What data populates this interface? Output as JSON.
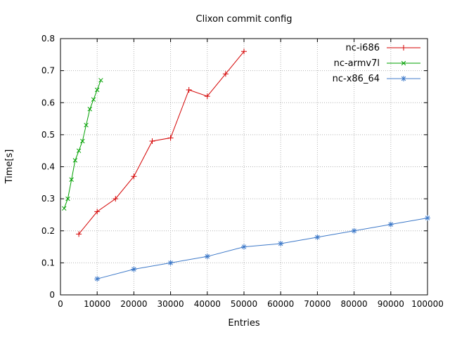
{
  "chart_data": {
    "type": "line",
    "title": "Clixon commit config",
    "xlabel": "Entries",
    "ylabel": "Time[s]",
    "xlim": [
      0,
      100000
    ],
    "ylim": [
      0,
      0.8
    ],
    "xticks": [
      0,
      10000,
      20000,
      30000,
      40000,
      50000,
      60000,
      70000,
      80000,
      90000,
      100000
    ],
    "yticks": [
      0,
      0.1,
      0.2,
      0.3,
      0.4,
      0.5,
      0.6,
      0.7,
      0.8
    ],
    "grid": true,
    "legend_position": "top-right-inside",
    "series": [
      {
        "name": "nc-i686",
        "color": "#d40000",
        "marker": "plus",
        "x": [
          5000,
          10000,
          15000,
          20000,
          25000,
          30000,
          35000,
          40000,
          45000,
          50000
        ],
        "y": [
          0.19,
          0.26,
          0.3,
          0.37,
          0.48,
          0.49,
          0.64,
          0.62,
          0.69,
          0.76
        ]
      },
      {
        "name": "nc-armv7l",
        "color": "#00a000",
        "marker": "x",
        "x": [
          1000,
          2000,
          3000,
          4000,
          5000,
          6000,
          7000,
          8000,
          9000,
          10000,
          11000
        ],
        "y": [
          0.27,
          0.3,
          0.36,
          0.42,
          0.45,
          0.48,
          0.53,
          0.58,
          0.61,
          0.64,
          0.67
        ]
      },
      {
        "name": "nc-x86_64",
        "color": "#3c78c8",
        "marker": "star",
        "x": [
          10000,
          20000,
          30000,
          40000,
          50000,
          60000,
          70000,
          80000,
          90000,
          100000
        ],
        "y": [
          0.05,
          0.08,
          0.1,
          0.12,
          0.15,
          0.16,
          0.18,
          0.2,
          0.22,
          0.24
        ]
      }
    ]
  }
}
